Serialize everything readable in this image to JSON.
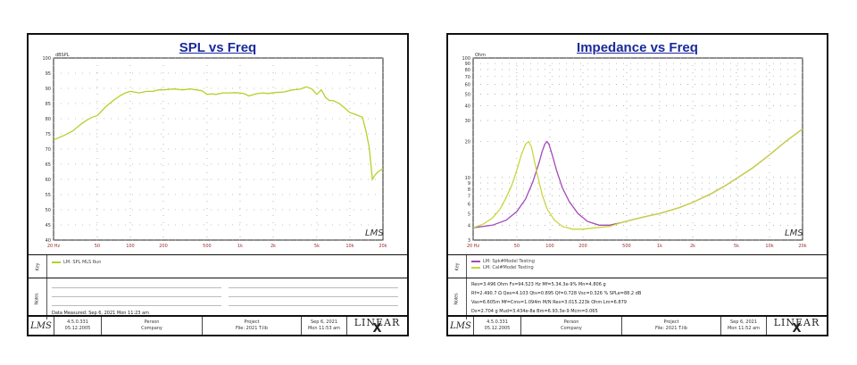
{
  "charts": [
    {
      "title": "SPL vs Freq",
      "y_unit": "dBSPL",
      "y_ticks": [
        "100",
        "95",
        "90",
        "85",
        "80",
        "75",
        "70",
        "65",
        "60",
        "55",
        "50",
        "45",
        "40"
      ],
      "x_ticks": [
        "20 Hz",
        "50",
        "100",
        "200",
        "500",
        "1k",
        "2k",
        "5k",
        "10k",
        "20k"
      ],
      "watermark": "LMS",
      "legend": [
        {
          "label": "LM: SPL MLS Run",
          "color": "#b7cf2a"
        }
      ],
      "side_tabs": {
        "legend": "Key",
        "notes": "Notes"
      },
      "notes": [
        "Data Measured: Sep 6, 2021  Mon 11:23 am"
      ],
      "footer": {
        "version": [
          "4.5.0.331",
          "05.12.2005"
        ],
        "person": [
          "Person",
          "Company"
        ],
        "project": [
          "Project",
          "File: 2021 T.lib"
        ],
        "date": [
          "Sep 6, 2021",
          "Mon 11:53 am"
        ],
        "brand": "LINEAR",
        "brand_x": "X",
        "logo": "LMS"
      }
    },
    {
      "title": "Impedance vs Freq",
      "y_unit": "Ohm",
      "y_ticks": [
        "100",
        "90",
        "80",
        "70",
        "60",
        "50",
        "40",
        "30",
        "20",
        "10",
        "9",
        "8",
        "7",
        "6",
        "5",
        "4",
        "3"
      ],
      "x_ticks": [
        "20 Hz",
        "50",
        "100",
        "200",
        "500",
        "1k",
        "2k",
        "5k",
        "10k",
        "20k"
      ],
      "watermark": "LMS",
      "legend": [
        {
          "label": "LM: Spk#Model Testing",
          "color": "#a348b8"
        },
        {
          "label": "LM: Cal#Model Testing",
          "color": "#c8d73a"
        }
      ],
      "side_tabs": {
        "legend": "Key",
        "notes": "Notes"
      },
      "notes": [
        "Res=3.496 Ohm  Fs=94.523 Hz  Mf=5.34.3e-9%  Mn=4.806 g",
        "Rf=2.490.7 Ω  Qes=4.103  Qts=0.895  Qf=0.728  Vsc=0.326 %  SPLe=88.2 dB",
        "Vas=6.605m  Mf=Cms=1.094m  M/N  Res=3.015.223k Ohm  Lm=6.879",
        "Ds=2.704 g  Mud=3.434e-8a  Bm=6.93.3e-9  Mcm=0.065"
      ],
      "footer": {
        "version": [
          "4.5.0.331",
          "05.12.2005"
        ],
        "person": [
          "Person",
          "Company"
        ],
        "project": [
          "Project",
          "File: 2021 T.lib"
        ],
        "date": [
          "Sep 6, 2021",
          "Mon 11:52 am"
        ],
        "brand": "LINEAR",
        "brand_x": "X",
        "logo": "LMS"
      }
    }
  ],
  "chart_data": [
    {
      "type": "line",
      "title": "SPL vs Freq",
      "xlabel": "",
      "ylabel": "dBSPL",
      "x_scale": "log",
      "xlim": [
        20,
        20000
      ],
      "ylim": [
        40,
        100
      ],
      "grid": true,
      "legend_position": "bottom-left",
      "series": [
        {
          "name": "LM: SPL MLS Run",
          "color": "#b7cf2a",
          "x": [
            20,
            25,
            30,
            35,
            40,
            45,
            50,
            60,
            70,
            80,
            90,
            100,
            120,
            140,
            160,
            180,
            200,
            250,
            300,
            350,
            400,
            450,
            500,
            550,
            600,
            700,
            800,
            900,
            1000,
            1100,
            1200,
            1400,
            1600,
            1800,
            2000,
            2500,
            3000,
            3500,
            4000,
            4500,
            5000,
            5500,
            6000,
            6500,
            7000,
            8000,
            9000,
            10000,
            11000,
            12000,
            13000,
            14000,
            15000,
            16000,
            17000,
            18000,
            19000,
            20000
          ],
          "y": [
            73,
            74.5,
            76,
            78,
            79.5,
            80.5,
            81,
            84,
            86,
            87.5,
            88.5,
            89,
            88.5,
            89,
            89,
            89.5,
            89.5,
            89.8,
            89.5,
            89.8,
            89.5,
            89.2,
            88,
            88.2,
            88,
            88.5,
            88.5,
            88.6,
            88.5,
            88.2,
            87.5,
            88.2,
            88.5,
            88.3,
            88.6,
            88.8,
            89.5,
            89.7,
            90.5,
            89.8,
            88,
            89.5,
            87,
            86,
            86,
            85,
            83.5,
            82,
            81.5,
            81,
            80.5,
            76,
            70.5,
            60,
            61.5,
            62.5,
            63,
            63.5
          ]
        }
      ]
    },
    {
      "type": "line",
      "title": "Impedance vs Freq",
      "xlabel": "",
      "ylabel": "Ohm",
      "x_scale": "log",
      "y_scale": "log",
      "xlim": [
        20,
        20000
      ],
      "ylim": [
        3,
        100
      ],
      "grid": true,
      "legend_position": "bottom-left",
      "series": [
        {
          "name": "LM: Spk#Model Testing",
          "color": "#a348b8",
          "x": [
            20,
            30,
            40,
            50,
            60,
            70,
            80,
            85,
            90,
            94,
            98,
            105,
            115,
            130,
            150,
            180,
            220,
            280,
            350,
            450,
            600,
            800,
            1000,
            1500,
            2000,
            3000,
            4000,
            5000,
            7000,
            10000,
            14000,
            20000
          ],
          "y": [
            3.8,
            4.0,
            4.4,
            5.2,
            6.6,
            9.2,
            13.5,
            16.5,
            19.0,
            20.0,
            19.0,
            15.5,
            11.5,
            8.2,
            6.3,
            5.0,
            4.3,
            4.0,
            4.0,
            4.2,
            4.5,
            4.8,
            5.0,
            5.6,
            6.2,
            7.4,
            8.6,
            9.8,
            12.0,
            15.5,
            20.0,
            25.5
          ]
        },
        {
          "name": "LM: Cal#Model Testing",
          "color": "#c8d73a",
          "x": [
            20,
            25,
            30,
            35,
            40,
            45,
            50,
            55,
            60,
            64,
            68,
            72,
            78,
            85,
            95,
            110,
            130,
            160,
            200,
            260,
            350,
            450,
            600,
            800,
            1000,
            1500,
            2000,
            3000,
            4000,
            5000,
            7000,
            10000,
            14000,
            20000
          ],
          "y": [
            3.8,
            4.1,
            4.6,
            5.4,
            6.8,
            8.6,
            11.5,
            15.5,
            19.0,
            20.0,
            18.0,
            14.0,
            10.0,
            7.2,
            5.4,
            4.4,
            3.9,
            3.7,
            3.7,
            3.8,
            3.9,
            4.2,
            4.5,
            4.8,
            5.0,
            5.6,
            6.2,
            7.4,
            8.6,
            9.8,
            12.0,
            15.5,
            20.0,
            25.5
          ]
        }
      ]
    }
  ]
}
